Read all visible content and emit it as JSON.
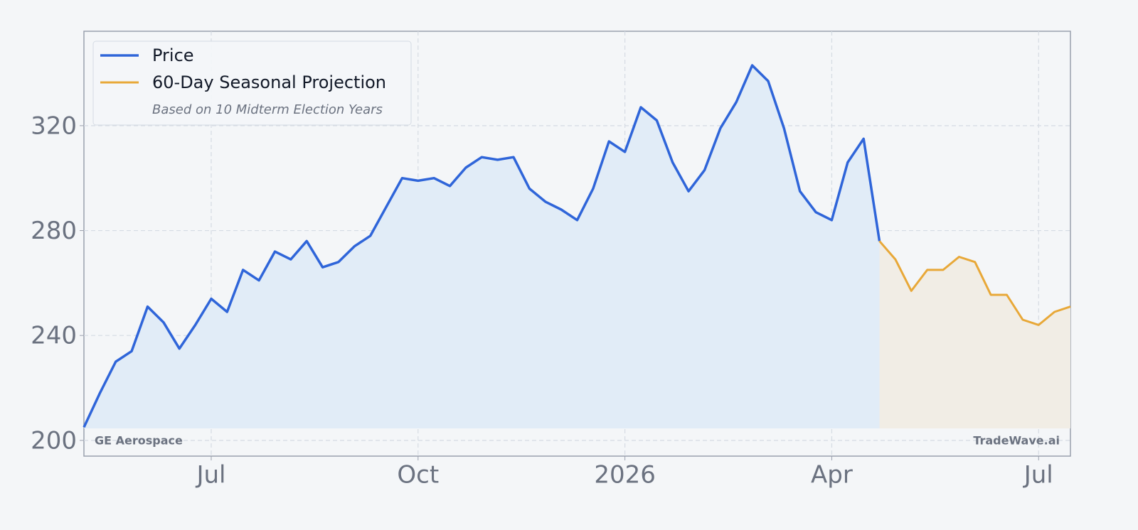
{
  "chart_data": {
    "type": "line",
    "categories": [
      null,
      null,
      null,
      null,
      null,
      null,
      null,
      null,
      "Jul",
      null,
      null,
      null,
      null,
      null,
      null,
      null,
      null,
      null,
      null,
      null,
      null,
      "Oct",
      null,
      null,
      null,
      null,
      null,
      null,
      null,
      null,
      null,
      null,
      null,
      null,
      "2026",
      null,
      null,
      null,
      null,
      null,
      null,
      null,
      null,
      null,
      null,
      null,
      null,
      "Apr",
      null,
      null,
      null,
      null,
      null,
      null,
      null,
      null,
      null,
      null,
      null,
      null,
      "Jul",
      null,
      null
    ],
    "series": [
      {
        "name": "Price",
        "color": "#2f65d9",
        "fill": "#e1ecf7",
        "values": [
          205,
          218,
          230,
          234,
          251,
          245,
          235,
          244,
          254,
          249,
          265,
          261,
          272,
          269,
          276,
          266,
          268,
          274,
          278,
          289,
          300,
          299,
          300,
          297,
          304,
          308,
          307,
          308,
          296,
          291,
          288,
          284,
          296,
          314,
          310,
          327,
          322,
          306,
          295,
          303,
          319,
          329,
          343,
          337,
          319,
          295,
          287,
          284,
          306,
          315,
          276,
          null,
          null,
          null,
          null,
          null,
          null,
          null,
          null,
          null,
          null,
          null,
          null
        ]
      },
      {
        "name": "60-Day Seasonal Projection",
        "color": "#e8a838",
        "fill": "#f1ede5",
        "values": [
          null,
          null,
          null,
          null,
          null,
          null,
          null,
          null,
          null,
          null,
          null,
          null,
          null,
          null,
          null,
          null,
          null,
          null,
          null,
          null,
          null,
          null,
          null,
          null,
          null,
          null,
          null,
          null,
          null,
          null,
          null,
          null,
          null,
          null,
          null,
          null,
          null,
          null,
          null,
          null,
          null,
          null,
          null,
          null,
          null,
          null,
          null,
          null,
          null,
          null,
          276,
          269,
          257,
          265,
          265,
          270,
          268,
          255.5,
          255.5,
          246,
          244,
          249,
          251
        ]
      }
    ],
    "legend_note": "Based on 10 Midterm Election Years",
    "watermark_left": "GE Aerospace",
    "watermark_right": "TradeWave.ai",
    "ylim": [
      194,
      356
    ],
    "yticks": [
      200,
      240,
      280,
      320
    ],
    "grid": true,
    "legend": "upper left"
  }
}
